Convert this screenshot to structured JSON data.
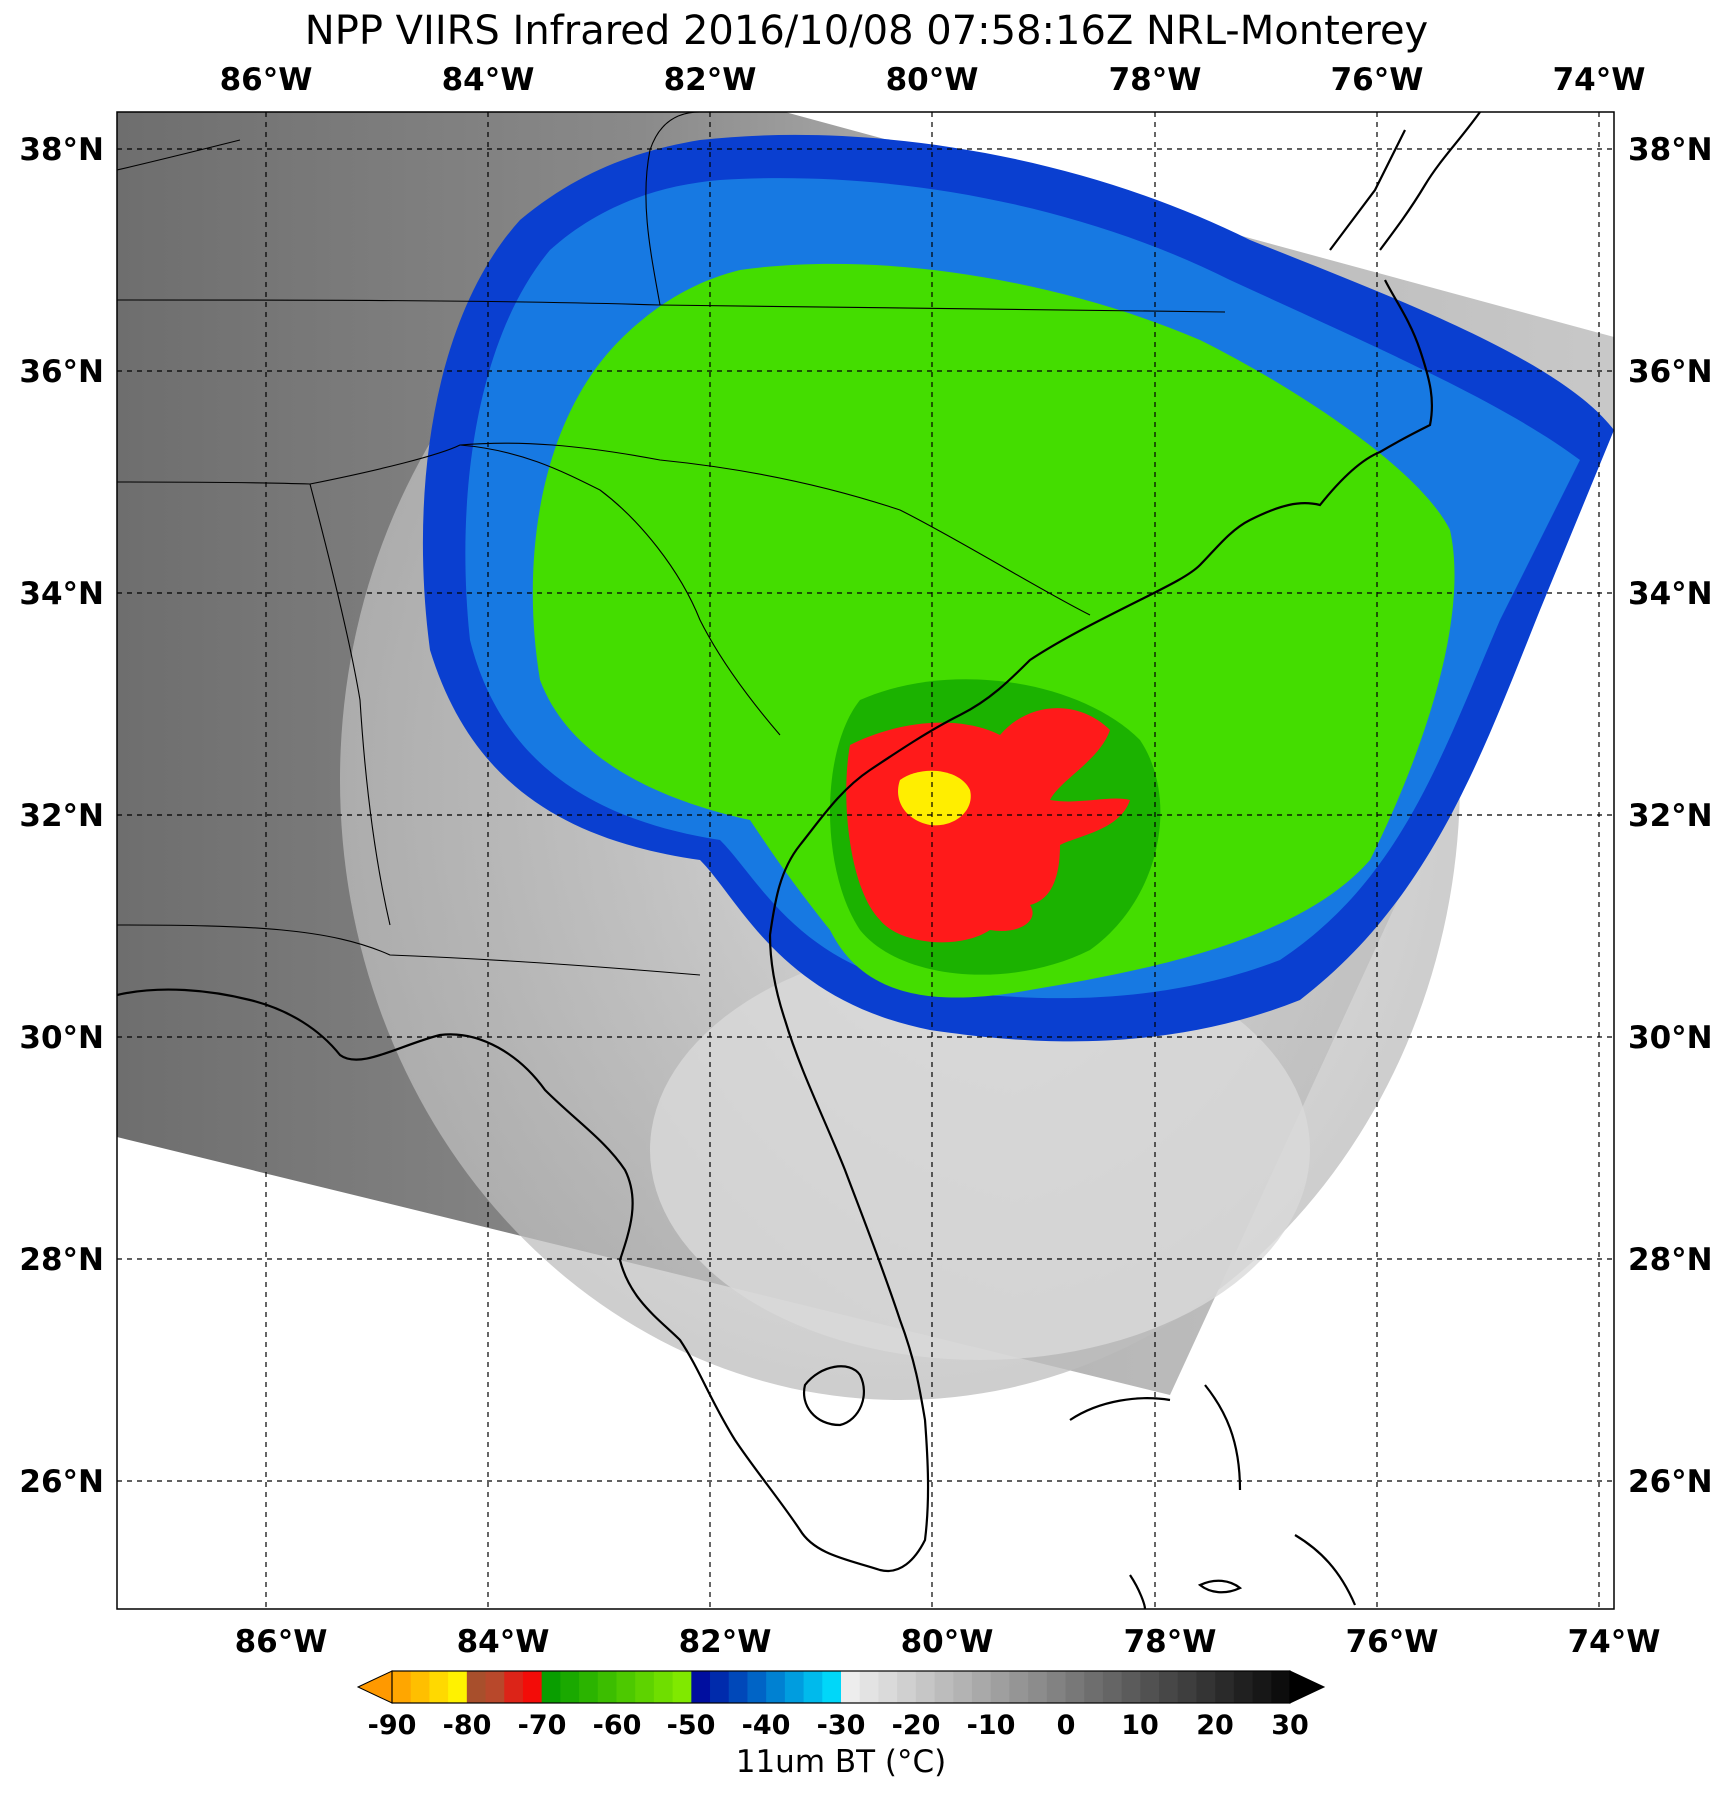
{
  "title": "NPP VIIRS Infrared 2016/10/08 07:58:16Z NRL-Monterey",
  "map": {
    "lon_labels": [
      "86°W",
      "84°W",
      "82°W",
      "80°W",
      "78°W",
      "76°W",
      "74°W"
    ],
    "lat_labels": [
      "38°N",
      "36°N",
      "34°N",
      "32°N",
      "30°N",
      "28°N",
      "26°N"
    ],
    "lon_range": [
      -87.35,
      -73.9
    ],
    "lat_range": [
      24.85,
      38.35
    ]
  },
  "colorbar": {
    "label": "11um BT (°C)",
    "tick_labels": [
      "-90",
      "-80",
      "-70",
      "-60",
      "-50",
      "-40",
      "-30",
      "-20",
      "-10",
      "0",
      "10",
      "20",
      "30"
    ],
    "range": [
      -90,
      30
    ],
    "colors": {
      "very_cold": "#ffa500",
      "yellow": "#ffff00",
      "red": "#ff0000",
      "green": "#33cc00",
      "blue": "#0033cc",
      "cyan": "#00ccff",
      "warm_white": "#eeeeee",
      "warm_black": "#000000"
    }
  }
}
